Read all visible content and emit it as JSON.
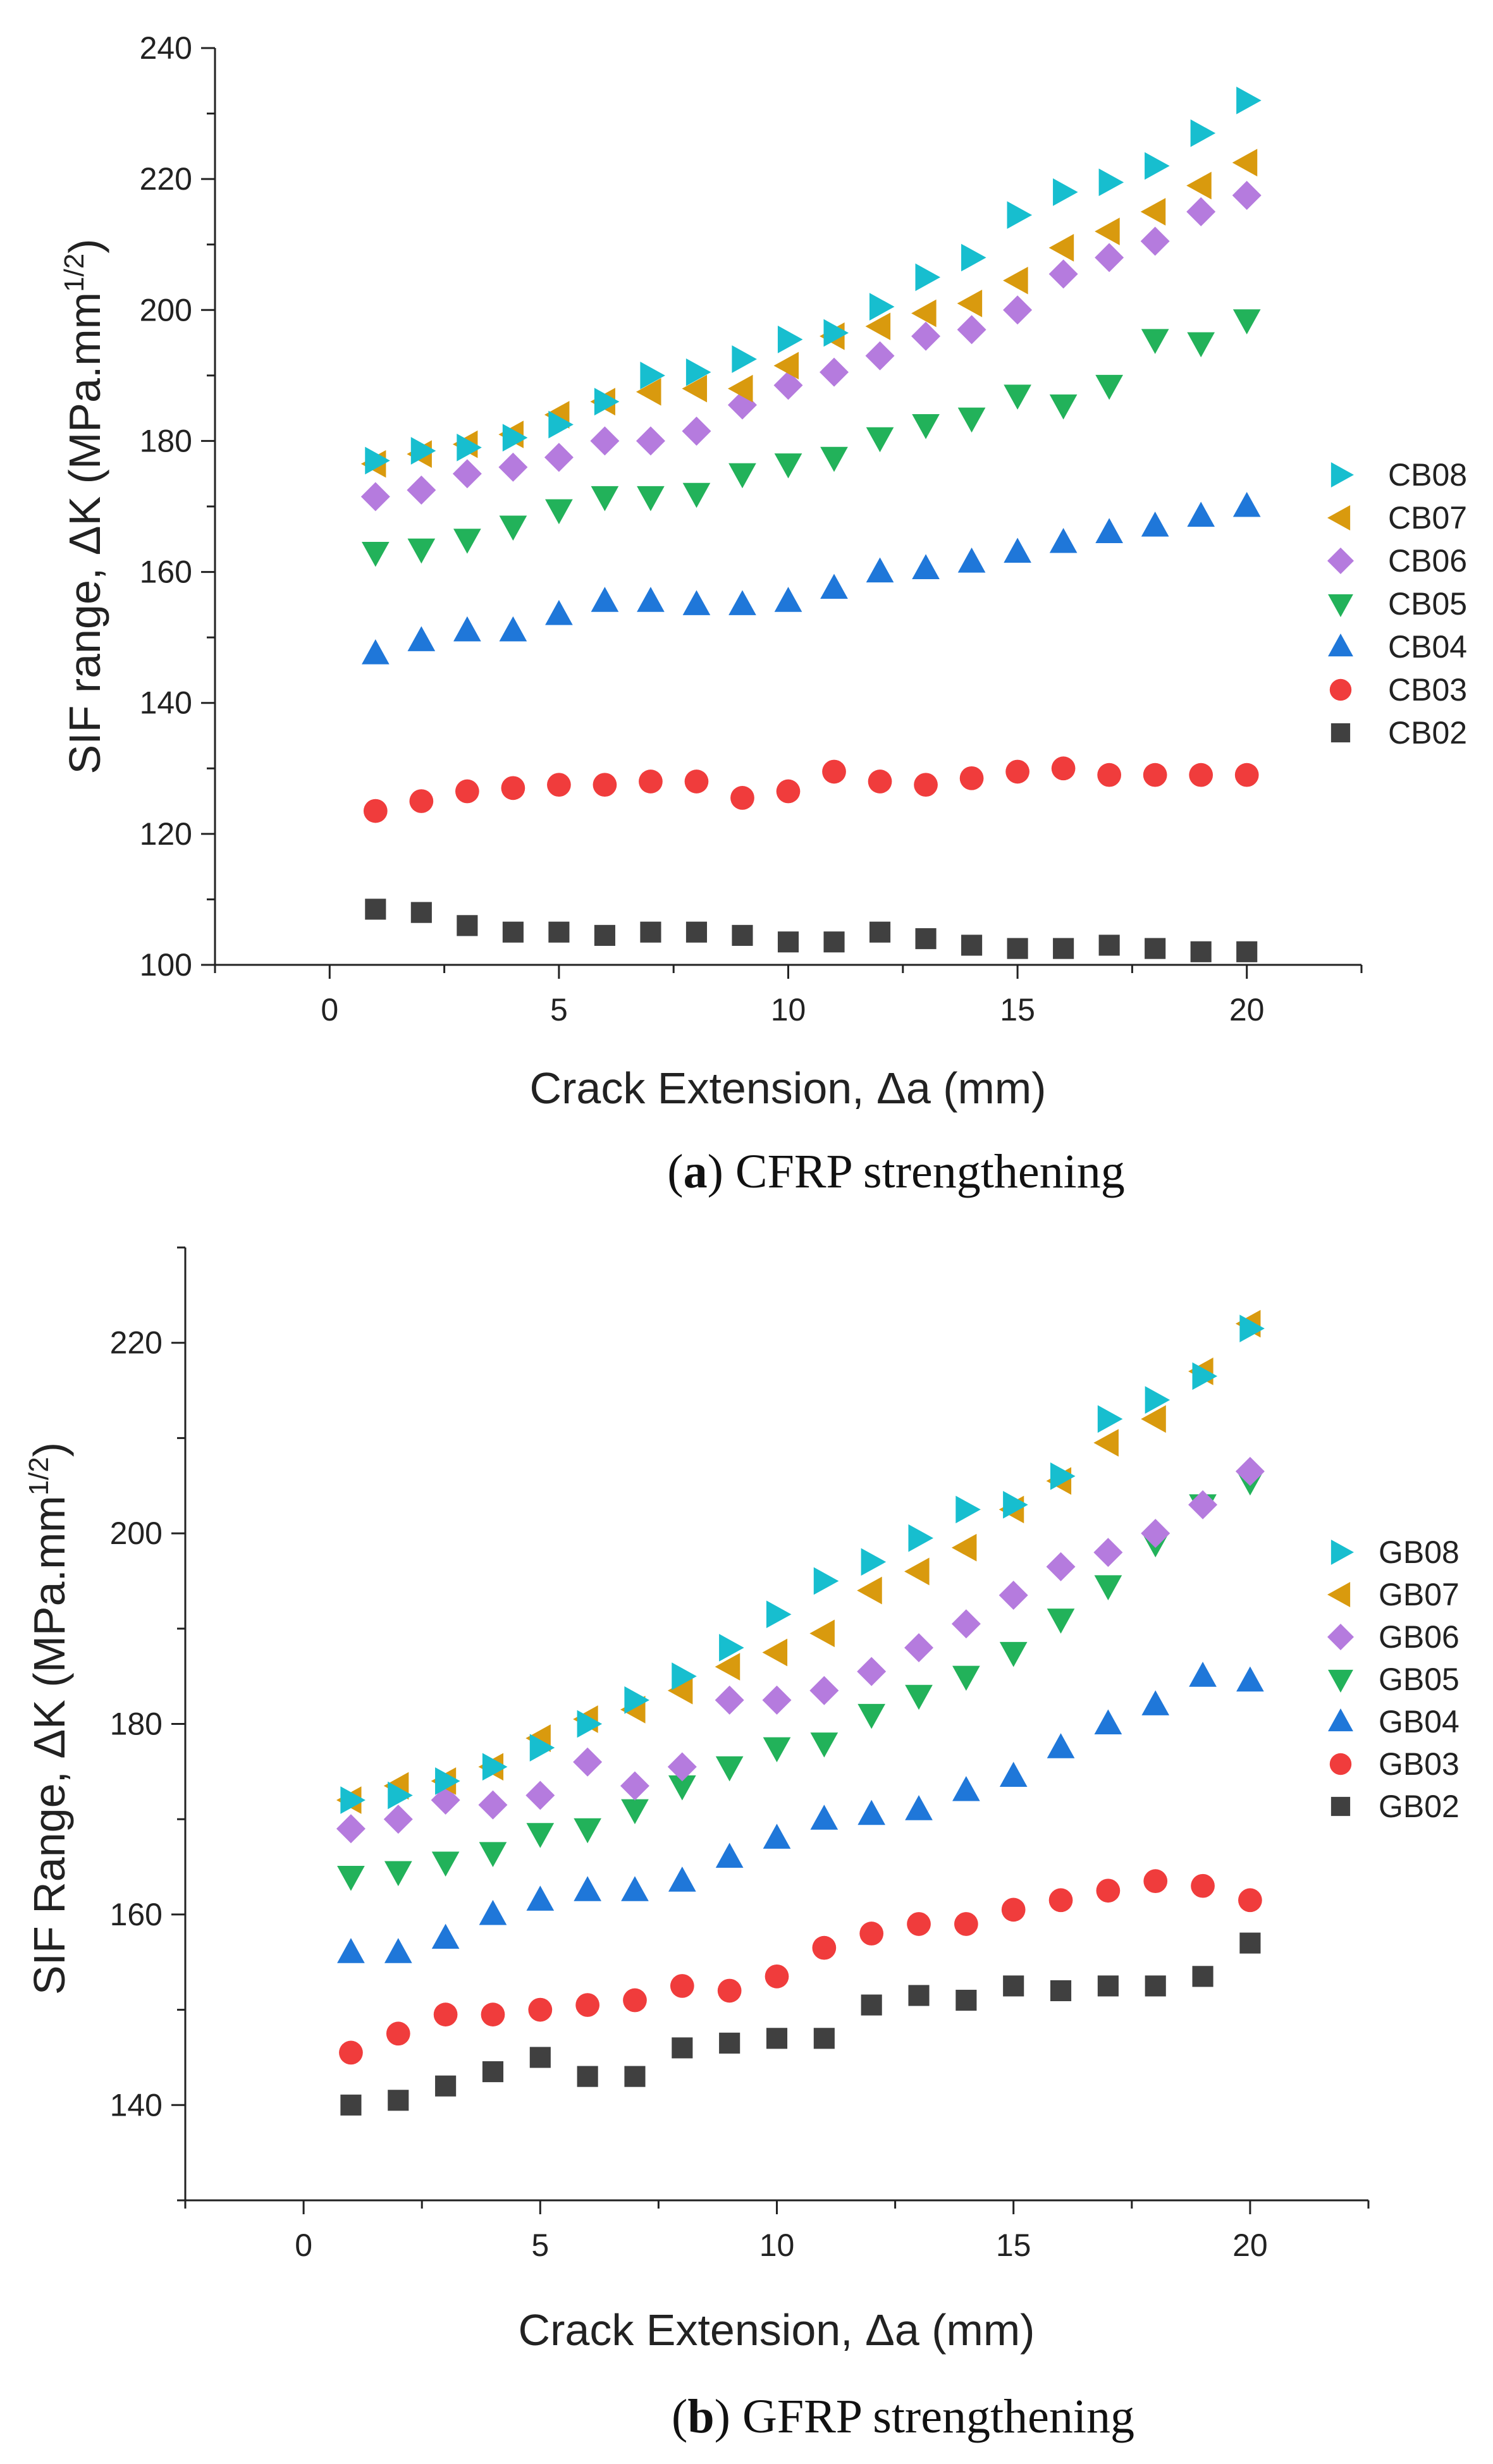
{
  "chart_data": [
    {
      "type": "scatter",
      "panel": "a",
      "caption_letter": "a",
      "caption_text": " CFRP strengthening",
      "xlabel": "Crack Extension, Δa (mm)",
      "ylabel_main": "SIF range, ΔK (MPa.mm",
      "ylabel_sup": "1/2",
      "ylabel_close": ")",
      "xlim": [
        -2.5,
        22.5
      ],
      "ylim": [
        100,
        240
      ],
      "xticks": [
        0,
        5,
        10,
        15,
        20
      ],
      "yticks": [
        100,
        120,
        140,
        160,
        180,
        200,
        220,
        240
      ],
      "x": [
        1,
        2,
        3,
        4,
        5,
        6,
        7,
        8,
        9,
        10,
        11,
        12,
        13,
        14,
        15,
        16,
        17,
        18,
        19,
        20
      ],
      "series": [
        {
          "name": "CB08",
          "marker": "triangle-right",
          "color": "#17becf",
          "values": [
            177.0,
            178.5,
            179.0,
            180.5,
            182.5,
            186.0,
            190.0,
            190.5,
            192.5,
            195.5,
            196.5,
            200.5,
            205.0,
            208.0,
            214.5,
            218.0,
            219.5,
            222.0,
            227.0,
            232.0
          ]
        },
        {
          "name": "CB07",
          "marker": "triangle-left",
          "color": "#d99a0e",
          "values": [
            176.5,
            178.0,
            179.5,
            181.0,
            184.0,
            186.0,
            187.5,
            188.0,
            188.0,
            191.5,
            196.0,
            197.5,
            199.5,
            201.0,
            204.5,
            209.5,
            212.0,
            215.0,
            219.0,
            222.5
          ]
        },
        {
          "name": "CB06",
          "marker": "diamond",
          "color": "#b57bde",
          "values": [
            171.5,
            172.5,
            175.0,
            176.0,
            177.5,
            180.0,
            180.0,
            181.5,
            185.5,
            188.5,
            190.5,
            193.0,
            196.0,
            197.0,
            200.0,
            205.5,
            208.0,
            210.5,
            215.0,
            217.5
          ]
        },
        {
          "name": "CB05",
          "marker": "triangle-down",
          "color": "#22b25a",
          "values": [
            163.0,
            163.5,
            165.0,
            167.0,
            169.5,
            171.5,
            171.5,
            172.0,
            175.0,
            176.5,
            177.5,
            180.5,
            182.5,
            183.5,
            187.0,
            185.5,
            188.5,
            195.5,
            195.0,
            198.5
          ]
        },
        {
          "name": "CB04",
          "marker": "triangle-up",
          "color": "#1f77d9",
          "values": [
            147.5,
            149.5,
            151.0,
            151.0,
            153.5,
            155.5,
            155.5,
            155.0,
            155.0,
            155.5,
            157.5,
            160.0,
            160.5,
            161.5,
            163.0,
            164.5,
            166.0,
            167.0,
            168.5,
            170.0
          ]
        },
        {
          "name": "CB03",
          "marker": "circle",
          "color": "#f03c3c",
          "values": [
            123.5,
            125.0,
            126.5,
            127.0,
            127.5,
            127.5,
            128.0,
            128.0,
            125.5,
            126.5,
            129.5,
            128.0,
            127.5,
            128.5,
            129.5,
            130.0,
            129.0,
            129.0,
            129.0,
            129.0
          ]
        },
        {
          "name": "CB02",
          "marker": "square",
          "color": "#404040",
          "values": [
            108.5,
            108.0,
            106.0,
            105.0,
            105.0,
            104.5,
            105.0,
            105.0,
            104.5,
            103.5,
            103.5,
            105.0,
            104.0,
            103.0,
            102.5,
            102.5,
            103.0,
            102.5,
            102.0,
            102.0
          ]
        }
      ]
    },
    {
      "type": "scatter",
      "panel": "b",
      "caption_letter": "b",
      "caption_text": " GFRP strengthening",
      "xlabel": "Crack Extension, Δa (mm)",
      "ylabel_main": "SIF Range, ΔK (MPa.mm",
      "ylabel_sup": "1/2",
      "ylabel_close": ")",
      "xlim": [
        -2.5,
        22.5
      ],
      "ylim": [
        130,
        230
      ],
      "xticks": [
        0,
        5,
        10,
        15,
        20
      ],
      "yticks": [
        140,
        160,
        180,
        200,
        220
      ],
      "x": [
        1,
        2,
        3,
        4,
        5,
        6,
        7,
        8,
        9,
        10,
        11,
        12,
        13,
        14,
        15,
        16,
        17,
        18,
        19,
        20
      ],
      "series": [
        {
          "name": "GB08",
          "marker": "triangle-right",
          "color": "#17becf",
          "values": [
            172.0,
            172.5,
            174.0,
            175.5,
            177.5,
            180.0,
            182.5,
            185.0,
            188.0,
            191.5,
            195.0,
            197.0,
            199.5,
            202.5,
            203.0,
            206.0,
            212.0,
            214.0,
            216.5,
            221.5
          ]
        },
        {
          "name": "GB07",
          "marker": "triangle-left",
          "color": "#d99a0e",
          "values": [
            172.0,
            173.5,
            174.0,
            175.5,
            178.5,
            180.5,
            181.5,
            183.5,
            186.0,
            187.5,
            189.5,
            194.0,
            196.0,
            198.5,
            202.5,
            205.5,
            209.5,
            212.0,
            217.0,
            222.0
          ]
        },
        {
          "name": "GB06",
          "marker": "diamond",
          "color": "#b57bde",
          "values": [
            169.0,
            170.0,
            172.0,
            171.5,
            172.5,
            176.0,
            173.5,
            175.5,
            182.5,
            182.5,
            183.5,
            185.5,
            188.0,
            190.5,
            193.5,
            196.5,
            198.0,
            200.0,
            203.0,
            206.5
          ]
        },
        {
          "name": "GB05",
          "marker": "triangle-down",
          "color": "#22b25a",
          "values": [
            164.0,
            164.5,
            165.5,
            166.5,
            168.5,
            169.0,
            171.0,
            173.5,
            175.5,
            177.5,
            178.0,
            181.0,
            183.0,
            185.0,
            187.5,
            191.0,
            194.5,
            199.0,
            203.0,
            205.5
          ]
        },
        {
          "name": "GB04",
          "marker": "triangle-up",
          "color": "#1f77d9",
          "values": [
            156.0,
            156.0,
            157.5,
            160.0,
            161.5,
            162.5,
            162.5,
            163.5,
            166.0,
            168.0,
            170.0,
            170.5,
            171.0,
            173.0,
            174.5,
            177.5,
            180.0,
            182.0,
            185.0,
            184.5
          ]
        },
        {
          "name": "GB03",
          "marker": "circle",
          "color": "#f03c3c",
          "values": [
            145.5,
            147.5,
            149.5,
            149.5,
            150.0,
            150.5,
            151.0,
            152.5,
            152.0,
            153.5,
            156.5,
            158.0,
            159.0,
            159.0,
            160.5,
            161.5,
            162.5,
            163.5,
            163.0,
            161.5
          ]
        },
        {
          "name": "GB02",
          "marker": "square",
          "color": "#404040",
          "values": [
            140.0,
            140.5,
            142.0,
            143.5,
            145.0,
            143.0,
            143.0,
            146.0,
            146.5,
            147.0,
            147.0,
            150.5,
            151.5,
            151.0,
            152.5,
            152.0,
            152.5,
            152.5,
            153.5,
            157.0
          ]
        }
      ]
    }
  ]
}
